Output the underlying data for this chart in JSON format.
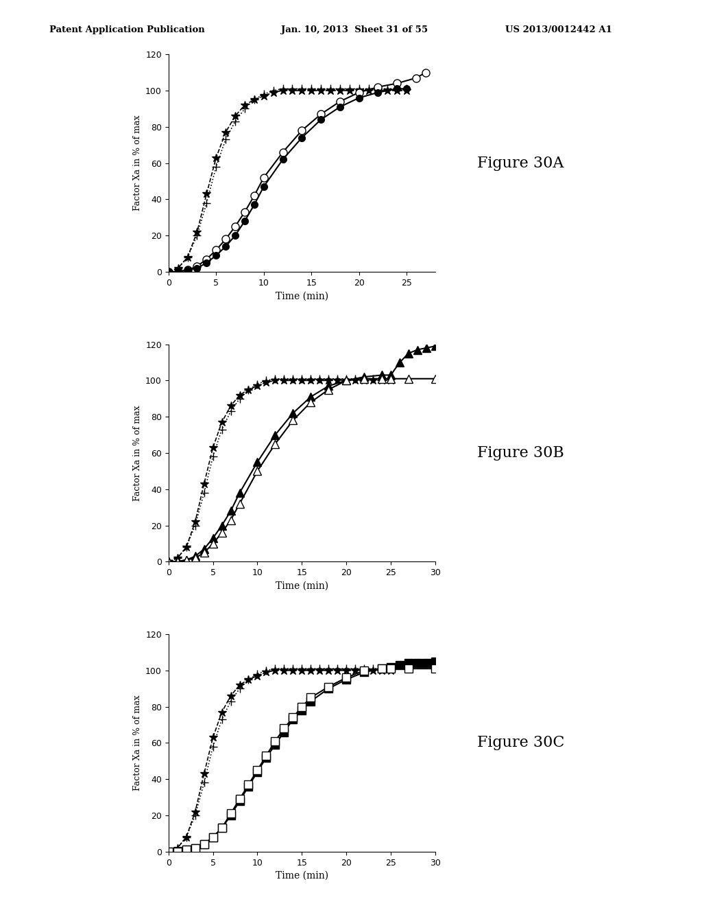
{
  "header_left": "Patent Application Publication",
  "header_mid": "Jan. 10, 2013  Sheet 31 of 55",
  "header_right": "US 2013/0012442 A1",
  "figure_labels": [
    "Figure 30A",
    "Figure 30B",
    "Figure 30C"
  ],
  "ylabel": "Factor Xa in % of max",
  "xlabel": "Time (min)",
  "xlim": [
    0,
    30
  ],
  "ylim": [
    0,
    120
  ],
  "xticks": [
    0,
    5,
    10,
    15,
    20,
    25,
    30
  ],
  "yticks": [
    0,
    20,
    40,
    60,
    80,
    100,
    120
  ],
  "plots": [
    {
      "xlim": [
        0,
        28
      ],
      "xticks": [
        0,
        5,
        10,
        15,
        20,
        25
      ],
      "series": [
        {
          "x": [
            0,
            1,
            2,
            3,
            4,
            5,
            6,
            7,
            8,
            9,
            10,
            11,
            12,
            13,
            14,
            15,
            16,
            17,
            18,
            19,
            20,
            21,
            22,
            23,
            24,
            25
          ],
          "y": [
            0,
            2,
            8,
            20,
            38,
            58,
            73,
            83,
            90,
            95,
            98,
            100,
            101,
            101,
            101,
            101,
            101,
            101,
            101,
            101,
            101,
            101,
            101,
            101,
            101,
            101
          ],
          "marker": "+",
          "linestyle": "dotted",
          "linewidth": 1.2,
          "markersize": 8,
          "filled": true
        },
        {
          "x": [
            0,
            1,
            2,
            3,
            4,
            5,
            6,
            7,
            8,
            9,
            10,
            11,
            12,
            13,
            14,
            15,
            16,
            17,
            18,
            19,
            20,
            21,
            22,
            23,
            24,
            25
          ],
          "y": [
            0,
            2,
            8,
            22,
            43,
            63,
            77,
            86,
            92,
            95,
            97,
            99,
            100,
            100,
            100,
            100,
            100,
            100,
            100,
            100,
            100,
            100,
            100,
            100,
            100,
            100
          ],
          "marker": "*",
          "linestyle": "dashed",
          "linewidth": 1.2,
          "markersize": 9,
          "filled": true
        },
        {
          "x": [
            0,
            1,
            2,
            3,
            4,
            5,
            6,
            7,
            8,
            9,
            10,
            12,
            14,
            16,
            18,
            20,
            22,
            24,
            26,
            27
          ],
          "y": [
            0,
            0,
            1,
            3,
            7,
            12,
            18,
            25,
            33,
            42,
            52,
            66,
            78,
            87,
            94,
            99,
            102,
            104,
            107,
            110
          ],
          "marker": "o",
          "linestyle": "solid",
          "linewidth": 1.5,
          "markersize": 8,
          "filled": false
        },
        {
          "x": [
            0,
            1,
            2,
            3,
            4,
            5,
            6,
            7,
            8,
            9,
            10,
            12,
            14,
            16,
            18,
            20,
            22,
            24,
            25
          ],
          "y": [
            0,
            0,
            1,
            2,
            5,
            9,
            14,
            20,
            28,
            37,
            47,
            62,
            74,
            84,
            91,
            96,
            99,
            101,
            101
          ],
          "marker": "o",
          "linestyle": "solid",
          "linewidth": 1.5,
          "markersize": 7,
          "filled": true
        }
      ]
    },
    {
      "xlim": [
        0,
        30
      ],
      "xticks": [
        0,
        5,
        10,
        15,
        20,
        25,
        30
      ],
      "series": [
        {
          "x": [
            0,
            1,
            2,
            3,
            4,
            5,
            6,
            7,
            8,
            9,
            10,
            11,
            12,
            13,
            14,
            15,
            16,
            17,
            18,
            19,
            20,
            21,
            22,
            23,
            24,
            25
          ],
          "y": [
            0,
            2,
            8,
            20,
            38,
            58,
            73,
            83,
            90,
            95,
            98,
            100,
            101,
            101,
            101,
            101,
            101,
            101,
            101,
            101,
            101,
            101,
            101,
            101,
            101,
            101
          ],
          "marker": "+",
          "linestyle": "dotted",
          "linewidth": 1.2,
          "markersize": 8,
          "filled": true
        },
        {
          "x": [
            0,
            1,
            2,
            3,
            4,
            5,
            6,
            7,
            8,
            9,
            10,
            11,
            12,
            13,
            14,
            15,
            16,
            17,
            18,
            19,
            20,
            21,
            22,
            23,
            24,
            25
          ],
          "y": [
            0,
            2,
            8,
            22,
            43,
            63,
            77,
            86,
            92,
            95,
            97,
            99,
            100,
            100,
            100,
            100,
            100,
            100,
            100,
            100,
            100,
            100,
            100,
            100,
            100,
            100
          ],
          "marker": "*",
          "linestyle": "dashed",
          "linewidth": 1.2,
          "markersize": 9,
          "filled": true
        },
        {
          "x": [
            0,
            1,
            2,
            3,
            4,
            5,
            6,
            7,
            8,
            10,
            12,
            14,
            16,
            18,
            20,
            22,
            24,
            25,
            26,
            27,
            28,
            29,
            30
          ],
          "y": [
            0,
            0,
            1,
            3,
            7,
            13,
            20,
            28,
            38,
            55,
            70,
            82,
            91,
            97,
            100,
            102,
            103,
            103,
            110,
            115,
            117,
            118,
            119
          ],
          "marker": "^",
          "linestyle": "solid",
          "linewidth": 1.5,
          "markersize": 9,
          "filled": true
        },
        {
          "x": [
            0,
            1,
            2,
            3,
            4,
            5,
            6,
            7,
            8,
            10,
            12,
            14,
            16,
            18,
            20,
            22,
            24,
            25,
            27,
            30
          ],
          "y": [
            0,
            0,
            1,
            2,
            5,
            10,
            16,
            23,
            32,
            50,
            65,
            78,
            88,
            95,
            100,
            101,
            101,
            101,
            101,
            101
          ],
          "marker": "^",
          "linestyle": "solid",
          "linewidth": 1.5,
          "markersize": 9,
          "filled": false
        }
      ]
    },
    {
      "xlim": [
        0,
        30
      ],
      "xticks": [
        0,
        5,
        10,
        15,
        20,
        25,
        30
      ],
      "series": [
        {
          "x": [
            0,
            1,
            2,
            3,
            4,
            5,
            6,
            7,
            8,
            9,
            10,
            11,
            12,
            13,
            14,
            15,
            16,
            17,
            18,
            19,
            20,
            21,
            22,
            23,
            24,
            25
          ],
          "y": [
            0,
            2,
            8,
            20,
            38,
            58,
            73,
            83,
            90,
            95,
            98,
            100,
            101,
            101,
            101,
            101,
            101,
            101,
            101,
            101,
            101,
            101,
            101,
            101,
            101,
            101
          ],
          "marker": "+",
          "linestyle": "dotted",
          "linewidth": 1.2,
          "markersize": 8,
          "filled": true
        },
        {
          "x": [
            0,
            1,
            2,
            3,
            4,
            5,
            6,
            7,
            8,
            9,
            10,
            11,
            12,
            13,
            14,
            15,
            16,
            17,
            18,
            19,
            20,
            21,
            22,
            23,
            24,
            25
          ],
          "y": [
            0,
            2,
            8,
            22,
            43,
            63,
            77,
            86,
            92,
            95,
            97,
            99,
            100,
            100,
            100,
            100,
            100,
            100,
            100,
            100,
            100,
            100,
            100,
            100,
            100,
            100
          ],
          "marker": "*",
          "linestyle": "dashed",
          "linewidth": 1.2,
          "markersize": 9,
          "filled": true
        },
        {
          "x": [
            0,
            1,
            2,
            3,
            4,
            5,
            6,
            7,
            8,
            9,
            10,
            11,
            12,
            13,
            14,
            15,
            16,
            18,
            20,
            22,
            24,
            25,
            26,
            27,
            28,
            29,
            30
          ],
          "y": [
            0,
            0,
            1,
            2,
            4,
            8,
            13,
            20,
            28,
            36,
            44,
            52,
            59,
            66,
            73,
            78,
            83,
            90,
            95,
            99,
            101,
            102,
            103,
            104,
            104,
            104,
            105
          ],
          "marker": "s",
          "linestyle": "solid",
          "linewidth": 1.5,
          "markersize": 8,
          "filled": true
        },
        {
          "x": [
            0,
            1,
            2,
            3,
            4,
            5,
            6,
            7,
            8,
            9,
            10,
            11,
            12,
            13,
            14,
            15,
            16,
            18,
            20,
            22,
            24,
            25,
            27,
            30
          ],
          "y": [
            0,
            0,
            1,
            2,
            4,
            8,
            13,
            21,
            29,
            37,
            45,
            53,
            61,
            68,
            74,
            80,
            85,
            91,
            96,
            100,
            101,
            101,
            101,
            101
          ],
          "marker": "s",
          "linestyle": "solid",
          "linewidth": 1.5,
          "markersize": 8,
          "filled": false
        }
      ]
    }
  ]
}
